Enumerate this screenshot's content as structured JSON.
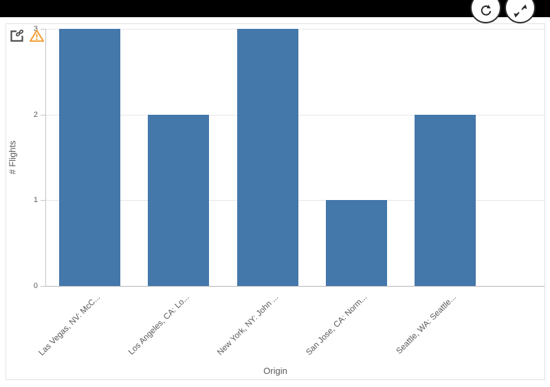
{
  "toolbar": {
    "refresh_button": "refresh",
    "expand_button": "expand"
  },
  "chart_panel": {
    "link_icon": "linked-object",
    "warning_icon": "warning"
  },
  "colors": {
    "bar": "#4477aa",
    "warning": "#f09c33",
    "axis_text": "#595959",
    "axis_line": "#b6b6b6",
    "gridline": "#e6e6e6"
  },
  "chart_data": {
    "type": "bar",
    "title": "",
    "categories": [
      "Las Vegas, NV: McC...",
      "Los Angeles, CA: Lo...",
      "New York, NY: John ...",
      "San Jose, CA: Norm...",
      "Seattle, WA: Seattle..."
    ],
    "values": [
      3,
      2,
      3,
      1,
      2
    ],
    "xlabel": "Origin",
    "ylabel": "# Flights",
    "yticks": [
      0,
      1,
      2,
      3
    ],
    "ylim": [
      0,
      3
    ],
    "grid": true,
    "legend_position": "none"
  }
}
